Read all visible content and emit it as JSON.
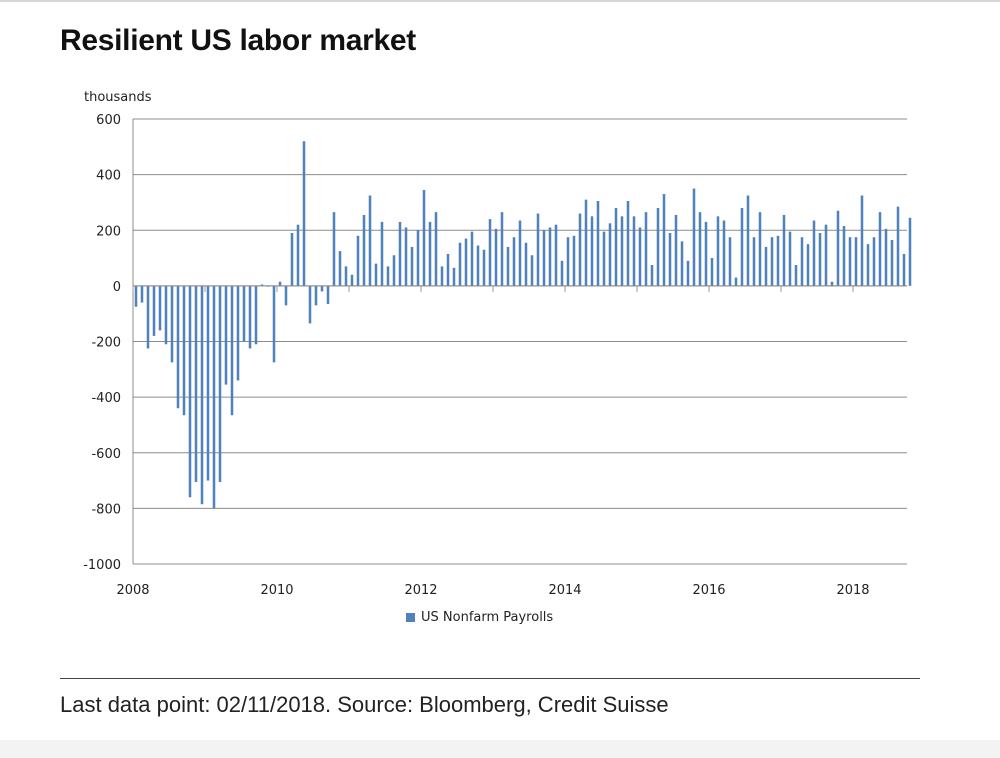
{
  "page": {
    "title": "Resilient US labor market",
    "source": "Last data point: 02/11/2018. Source: Bloomberg, Credit Suisse"
  },
  "chart_data": {
    "type": "bar",
    "title": "Resilient US labor market",
    "ylabel": "thousands",
    "xlabel": "",
    "ylim": [
      -1000,
      600
    ],
    "yticks": [
      600,
      400,
      200,
      0,
      -200,
      -400,
      -600,
      -800,
      -1000
    ],
    "ytick_labels": [
      "600",
      "400",
      "200",
      "0",
      "-200",
      "-400",
      "-600",
      "-800",
      "-1000"
    ],
    "xlim": [
      2008.0,
      2018.75
    ],
    "xticks": [
      2008,
      2010,
      2012,
      2014,
      2016,
      2018
    ],
    "xtick_labels": [
      "2008",
      "2010",
      "2012",
      "2014",
      "2016",
      "2018"
    ],
    "grid": true,
    "legend_position": "bottom-center",
    "color": "#4f81bd",
    "series": [
      {
        "name": "US Nonfarm Payrolls",
        "start": "2008-01",
        "frequency": "monthly",
        "values": [
          -75,
          -60,
          -225,
          -180,
          -160,
          -210,
          -275,
          -440,
          -465,
          -760,
          -705,
          -785,
          -700,
          -800,
          -705,
          -355,
          -465,
          -340,
          -200,
          -225,
          -210,
          5,
          0,
          -275,
          15,
          -70,
          190,
          220,
          520,
          -135,
          -70,
          -20,
          -65,
          265,
          125,
          70,
          40,
          180,
          255,
          325,
          80,
          230,
          70,
          110,
          230,
          210,
          140,
          200,
          345,
          230,
          265,
          70,
          115,
          65,
          155,
          170,
          195,
          145,
          130,
          240,
          205,
          265,
          140,
          175,
          235,
          155,
          110,
          260,
          200,
          210,
          220,
          90,
          175,
          180,
          260,
          310,
          250,
          305,
          195,
          225,
          280,
          250,
          305,
          250,
          210,
          265,
          75,
          280,
          330,
          190,
          255,
          160,
          90,
          350,
          265,
          230,
          100,
          250,
          235,
          175,
          30,
          280,
          325,
          175,
          265,
          140,
          175,
          180,
          255,
          195,
          75,
          175,
          150,
          235,
          190,
          220,
          15,
          270,
          215,
          175,
          175,
          325,
          150,
          175,
          265,
          205,
          165,
          285,
          115,
          245
        ]
      }
    ]
  }
}
